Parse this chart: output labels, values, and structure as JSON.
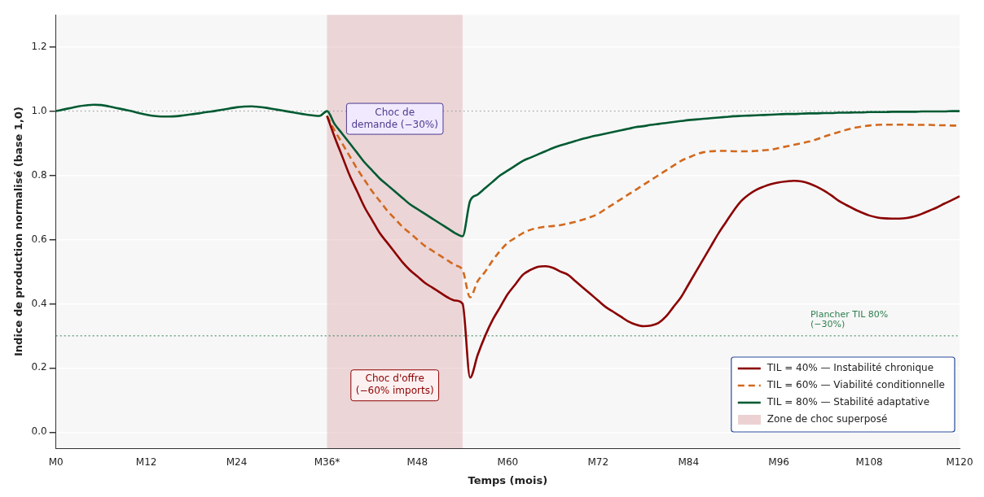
{
  "chart_data": {
    "type": "line",
    "xlabel": "Temps (mois)",
    "ylabel": "Indice de production normalisé (base 1,0)",
    "categories": [
      "M0",
      null,
      null,
      null,
      null,
      null,
      null,
      null,
      null,
      null,
      null,
      null,
      "M12",
      null,
      null,
      null,
      null,
      null,
      null,
      null,
      null,
      null,
      null,
      null,
      "M24",
      null,
      null,
      null,
      null,
      null,
      null,
      null,
      null,
      null,
      null,
      null,
      "M36*",
      null,
      null,
      null,
      null,
      null,
      null,
      null,
      null,
      null,
      null,
      null,
      "M48",
      null,
      null,
      null,
      null,
      null,
      null,
      null,
      null,
      null,
      null,
      null,
      "M60",
      null,
      null,
      null,
      null,
      null,
      null,
      null,
      null,
      null,
      null,
      null,
      "M72",
      null,
      null,
      null,
      null,
      null,
      null,
      null,
      null,
      null,
      null,
      null,
      "M84",
      null,
      null,
      null,
      null,
      null,
      null,
      null,
      null,
      null,
      null,
      null,
      "M96",
      null,
      null,
      null,
      null,
      null,
      null,
      null,
      null,
      null,
      null,
      null,
      "M108",
      null,
      null,
      null,
      null,
      null,
      null,
      null,
      null,
      null,
      null,
      null,
      "M120"
    ],
    "ylim": [
      -0.05,
      1.3
    ],
    "yticks": [
      {
        "value": 0,
        "label": "0.0"
      },
      {
        "value": 0.2,
        "label": "0.2"
      },
      {
        "value": 0.4,
        "label": "0.4"
      },
      {
        "value": 0.6,
        "label": "0.6"
      },
      {
        "value": 0.8,
        "label": "0.8"
      },
      {
        "value": 1,
        "label": "1.0"
      },
      {
        "value": 1.2,
        "label": "1.2"
      }
    ],
    "grid": "y",
    "legend": "bottom right",
    "marker": "none",
    "series": [
      {
        "name": "TIL = 40% — Instabilité chronique",
        "color": "#8b0000",
        "line_style": "solid",
        "values": [
          null,
          null,
          null,
          null,
          null,
          null,
          null,
          null,
          null,
          null,
          null,
          null,
          null,
          null,
          null,
          null,
          null,
          null,
          null,
          null,
          null,
          null,
          null,
          null,
          null,
          null,
          null,
          null,
          null,
          null,
          null,
          null,
          null,
          null,
          null,
          null,
          0.985,
          0.92,
          0.86,
          0.8,
          0.75,
          0.7,
          0.66,
          0.62,
          0.59,
          0.56,
          0.53,
          0.505,
          0.485,
          0.465,
          0.45,
          0.435,
          0.42,
          0.41,
          0.4,
          0.17,
          0.24,
          0.3,
          0.35,
          0.39,
          0.43,
          0.46,
          0.49,
          0.505,
          0.515,
          0.517,
          0.512,
          0.5,
          0.49,
          0.47,
          0.45,
          0.43,
          0.41,
          0.39,
          0.375,
          0.36,
          0.345,
          0.335,
          0.33,
          0.332,
          0.34,
          0.36,
          0.39,
          0.42,
          0.46,
          0.5,
          0.54,
          0.58,
          0.62,
          0.655,
          0.69,
          0.72,
          0.74,
          0.755,
          0.765,
          0.773,
          0.778,
          0.781,
          0.783,
          0.781,
          0.775,
          0.765,
          0.752,
          0.737,
          0.72,
          0.707,
          0.695,
          0.684,
          0.675,
          0.669,
          0.666,
          0.665,
          0.665,
          0.667,
          0.672,
          0.68,
          0.69,
          0.7,
          0.712,
          0.723,
          0.735
        ]
      },
      {
        "name": "TIL = 60% — Viabilité conditionnelle",
        "color": "#d2691e",
        "line_style": "dashed",
        "values": [
          null,
          null,
          null,
          null,
          null,
          null,
          null,
          null,
          null,
          null,
          null,
          null,
          null,
          null,
          null,
          null,
          null,
          null,
          null,
          null,
          null,
          null,
          null,
          null,
          null,
          null,
          null,
          null,
          null,
          null,
          null,
          null,
          null,
          null,
          null,
          null,
          0.985,
          0.94,
          0.9,
          0.86,
          0.82,
          0.785,
          0.75,
          0.72,
          0.69,
          0.665,
          0.64,
          0.62,
          0.6,
          0.58,
          0.565,
          0.55,
          0.535,
          0.52,
          0.505,
          0.42,
          0.47,
          0.5,
          0.535,
          0.565,
          0.59,
          0.605,
          0.62,
          0.63,
          0.636,
          0.64,
          0.642,
          0.645,
          0.65,
          0.655,
          0.662,
          0.67,
          0.68,
          0.695,
          0.71,
          0.725,
          0.74,
          0.755,
          0.77,
          0.785,
          0.8,
          0.815,
          0.83,
          0.845,
          0.855,
          0.865,
          0.872,
          0.875,
          0.876,
          0.876,
          0.875,
          0.875,
          0.875,
          0.876,
          0.878,
          0.88,
          0.885,
          0.89,
          0.895,
          0.9,
          0.905,
          0.912,
          0.92,
          0.928,
          0.935,
          0.942,
          0.948,
          0.952,
          0.955,
          0.957,
          0.958,
          0.958,
          0.958,
          0.958,
          0.957,
          0.957,
          0.957,
          0.956,
          0.956,
          0.955,
          0.955
        ]
      },
      {
        "name": "TIL = 80% — Stabilité adaptative",
        "color": "#005a32",
        "line_style": "solid",
        "values": [
          1.0,
          1.005,
          1.01,
          1.015,
          1.018,
          1.02,
          1.019,
          1.015,
          1.01,
          1.005,
          1.0,
          0.994,
          0.989,
          0.985,
          0.983,
          0.983,
          0.984,
          0.987,
          0.99,
          0.993,
          0.997,
          1.0,
          1.004,
          1.008,
          1.012,
          1.014,
          1.015,
          1.013,
          1.01,
          1.006,
          1.002,
          0.998,
          0.994,
          0.99,
          0.987,
          0.985,
          1.0,
          0.96,
          0.93,
          0.9,
          0.87,
          0.84,
          0.815,
          0.79,
          0.77,
          0.75,
          0.73,
          0.71,
          0.695,
          0.68,
          0.665,
          0.65,
          0.635,
          0.62,
          0.61,
          0.72,
          0.74,
          0.76,
          0.78,
          0.8,
          0.815,
          0.83,
          0.845,
          0.855,
          0.865,
          0.875,
          0.885,
          0.893,
          0.9,
          0.907,
          0.914,
          0.92,
          0.925,
          0.93,
          0.935,
          0.94,
          0.945,
          0.95,
          0.953,
          0.957,
          0.96,
          0.963,
          0.966,
          0.969,
          0.972,
          0.974,
          0.976,
          0.978,
          0.98,
          0.982,
          0.984,
          0.985,
          0.986,
          0.987,
          0.988,
          0.989,
          0.99,
          0.991,
          0.991,
          0.992,
          0.993,
          0.993,
          0.994,
          0.994,
          0.995,
          0.995,
          0.996,
          0.996,
          0.997,
          0.997,
          0.997,
          0.998,
          0.998,
          0.998,
          0.998,
          0.999,
          0.999,
          0.999,
          0.999,
          1.0,
          1.0
        ]
      }
    ],
    "ref_lines": [
      {
        "axis": "y",
        "value": 1.0,
        "label": null,
        "color": "#999999",
        "line_style": "dotted"
      },
      {
        "axis": "y",
        "value": 0.3,
        "label": "Plancher TIL 80%\n(−30%)",
        "color": "#2e7d4f",
        "line_style": "dotted"
      }
    ],
    "annotations": [
      "Choc de\ndemande (−30%)",
      "Choc d'offre\n(−60% imports)",
      "Zone de choc superposé"
    ]
  }
}
